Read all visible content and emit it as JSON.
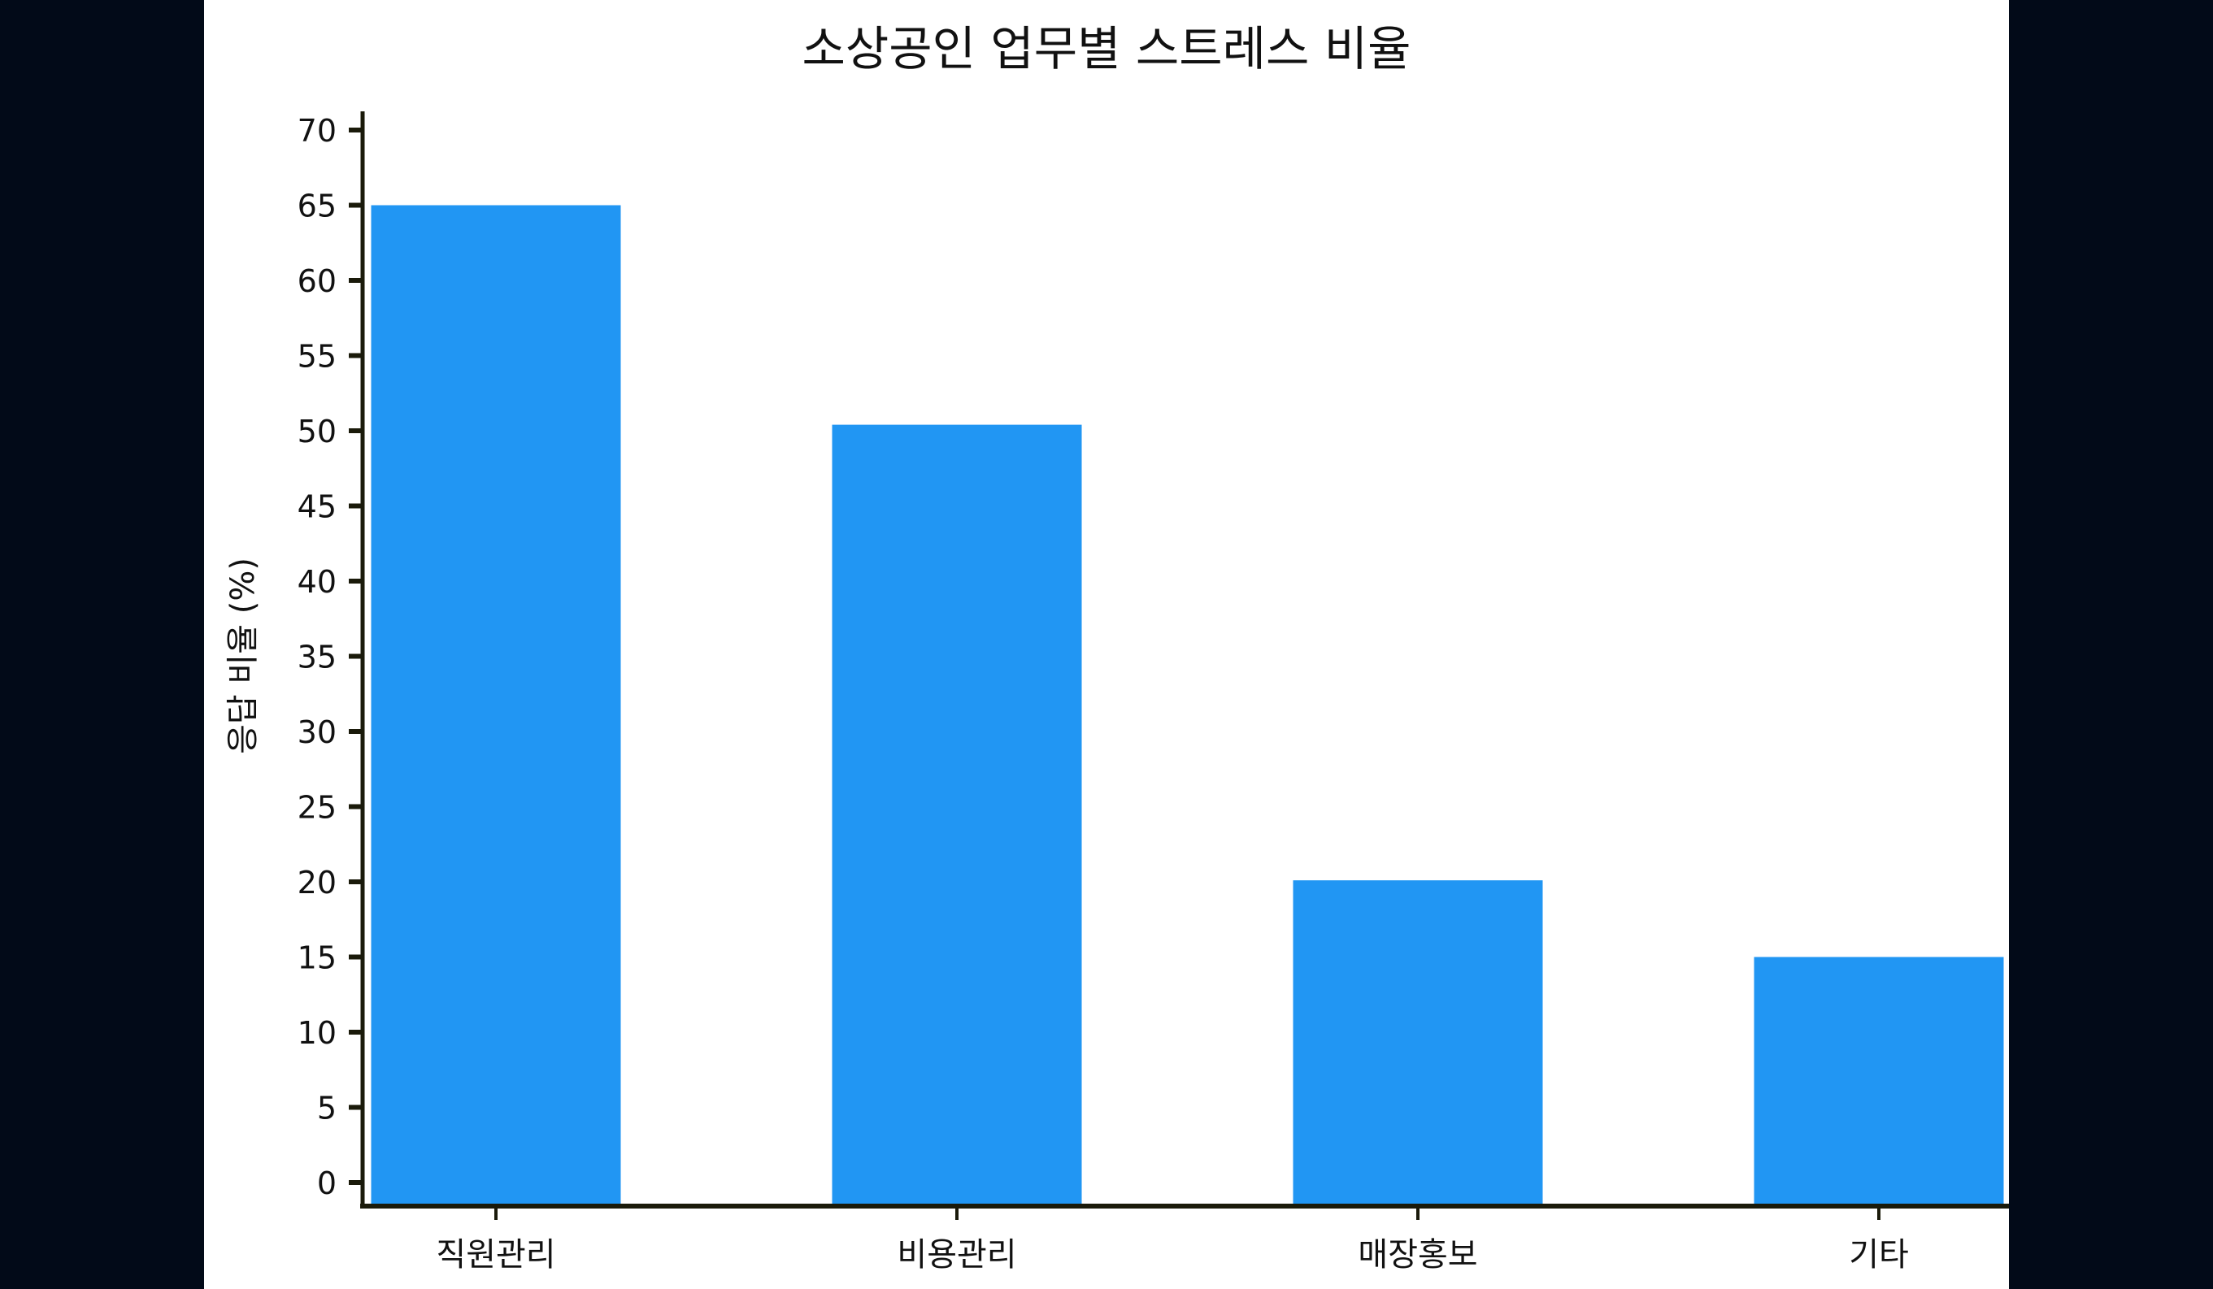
{
  "chart_data": {
    "type": "bar",
    "title": "소상공인 업무별 스트레스 비율",
    "xlabel": "",
    "ylabel": "응답 비율 (%)",
    "categories": [
      "직원관리",
      "비용관리",
      "매장홍보",
      "기타"
    ],
    "values": [
      65,
      50.4,
      20.1,
      15
    ],
    "ylim": [
      0,
      70
    ],
    "yticks": [
      0,
      5,
      10,
      15,
      20,
      25,
      30,
      35,
      40,
      45,
      50,
      55,
      60,
      65,
      70
    ],
    "grid": false,
    "bar_color": "#2196f3",
    "axis_color": "#1a1a0a",
    "background": "#ffffff",
    "outer_background": "#020a18"
  }
}
